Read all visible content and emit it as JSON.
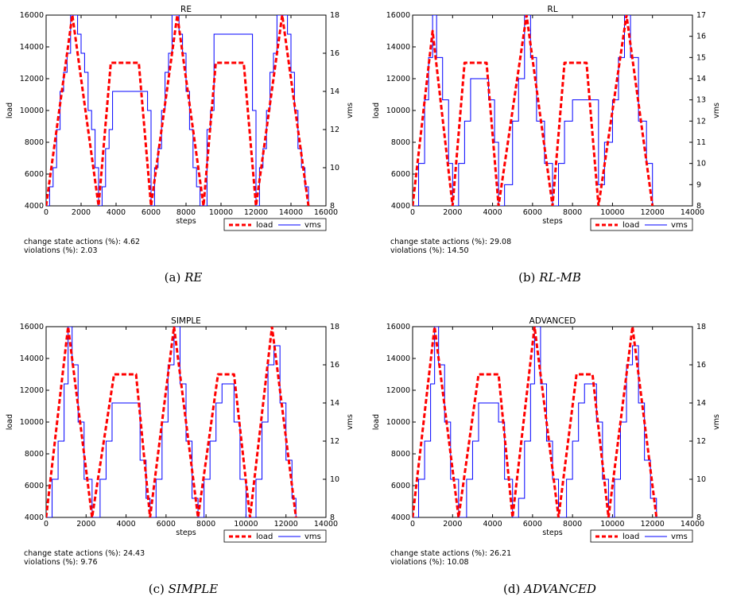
{
  "chart_data": [
    {
      "type": "line",
      "title": "RE",
      "xlabel": "steps",
      "ylabel": "load",
      "y2label": "vms",
      "xlim": [
        0,
        16000
      ],
      "ylim": [
        4000,
        16000
      ],
      "y2lim": [
        8,
        18
      ],
      "xticks": [
        "0",
        "2000",
        "4000",
        "6000",
        "8000",
        "10000",
        "12000",
        "14000",
        "16000"
      ],
      "yticks": [
        "4000",
        "6000",
        "8000",
        "10000",
        "12000",
        "14000",
        "16000"
      ],
      "y2ticks": [
        "8",
        "10",
        "12",
        "14",
        "16",
        "18"
      ],
      "legend": {
        "position": "below-right",
        "entries": [
          "load",
          "vms"
        ]
      },
      "series": [
        {
          "name": "load",
          "style": "dashed",
          "color": "#ff0000",
          "axis": "left",
          "x": [
            0,
            1500,
            3000,
            3700,
            5300,
            6000,
            7500,
            9000,
            9700,
            11300,
            12000,
            13500,
            15000
          ],
          "y": [
            4000,
            16000,
            4000,
            13000,
            13000,
            4000,
            16000,
            4000,
            13000,
            13000,
            4000,
            16000,
            4000
          ]
        },
        {
          "name": "vms",
          "style": "solid",
          "color": "#0000ff",
          "axis": "right",
          "x": [
            0,
            200,
            400,
            600,
            800,
            1000,
            1200,
            1400,
            1600,
            1800,
            2000,
            2200,
            2400,
            2600,
            2800,
            3000,
            3200,
            3400,
            3600,
            3800,
            4000,
            4500,
            5000,
            5500,
            5800,
            6000,
            6200,
            6400,
            6600,
            6800,
            7000,
            7200,
            7400,
            7600,
            7800,
            8000,
            8200,
            8400,
            8600,
            8800,
            9000,
            9200,
            9400,
            9600,
            9800,
            10000,
            10500,
            11000,
            11500,
            11800,
            12000,
            12200,
            12400,
            12600,
            12800,
            13000,
            13200,
            13400,
            13600,
            13800,
            14000,
            14200,
            14400,
            14600,
            14800,
            15000
          ],
          "y": [
            8,
            9,
            10,
            12,
            14,
            15,
            16,
            18,
            18,
            17,
            16,
            15,
            13,
            12,
            10,
            8,
            9,
            11,
            12,
            14,
            14,
            14,
            14,
            14,
            13,
            8,
            10,
            11,
            13,
            15,
            16,
            18,
            18,
            17,
            16,
            14,
            12,
            10,
            9,
            8,
            8,
            12,
            13,
            17,
            17,
            17,
            17,
            17,
            17,
            13,
            8,
            10,
            11,
            13,
            15,
            16,
            18,
            18,
            18,
            17,
            15,
            13,
            11,
            10,
            9,
            8
          ]
        }
      ],
      "annotations": [
        "change state actions (%): 4.62",
        "violations (%): 2.03"
      ]
    },
    {
      "type": "line",
      "title": "RL",
      "xlabel": "steps",
      "ylabel": "load",
      "y2label": "vms",
      "xlim": [
        0,
        14000
      ],
      "ylim": [
        4000,
        16000
      ],
      "y2lim": [
        8,
        17
      ],
      "xticks": [
        "0",
        "2000",
        "4000",
        "6000",
        "8000",
        "10000",
        "12000",
        "14000"
      ],
      "yticks": [
        "4000",
        "6000",
        "8000",
        "10000",
        "12000",
        "14000",
        "16000"
      ],
      "y2ticks": [
        "8",
        "9",
        "10",
        "11",
        "12",
        "13",
        "14",
        "15",
        "16",
        "17"
      ],
      "legend": {
        "position": "below-right",
        "entries": [
          "load",
          "vms"
        ]
      },
      "series": [
        {
          "name": "load",
          "style": "dashed",
          "color": "#ff0000",
          "axis": "left",
          "x": [
            0,
            1000,
            2000,
            2600,
            3700,
            4300,
            5700,
            7000,
            7600,
            8700,
            9300,
            10700,
            12000
          ],
          "y": [
            4000,
            15000,
            4000,
            13000,
            13000,
            4000,
            16000,
            4000,
            13000,
            13000,
            4000,
            16000,
            4000
          ]
        },
        {
          "name": "vms",
          "style": "solid",
          "color": "#0000ff",
          "axis": "right",
          "x": [
            0,
            300,
            600,
            800,
            1000,
            1200,
            1500,
            1800,
            2000,
            2300,
            2600,
            2900,
            3200,
            3500,
            3800,
            4100,
            4300,
            4600,
            5000,
            5300,
            5600,
            5900,
            6200,
            6600,
            7000,
            7300,
            7600,
            8000,
            8500,
            9000,
            9300,
            9600,
            10000,
            10300,
            10600,
            10900,
            11300,
            11700,
            12000
          ],
          "y": [
            8,
            10,
            13,
            15,
            17,
            15,
            13,
            10,
            8,
            10,
            12,
            14,
            14,
            14,
            13,
            11,
            8,
            9,
            12,
            14,
            17,
            15,
            12,
            10,
            8,
            10,
            12,
            13,
            13,
            13,
            9,
            11,
            13,
            15,
            17,
            15,
            12,
            10,
            8
          ]
        }
      ],
      "annotations": [
        "change state actions (%): 29.08",
        "violations (%): 14.50"
      ]
    },
    {
      "type": "line",
      "title": "SIMPLE",
      "xlabel": "steps",
      "ylabel": "load",
      "y2label": "vms",
      "xlim": [
        0,
        14000
      ],
      "ylim": [
        4000,
        16000
      ],
      "y2lim": [
        8,
        18
      ],
      "xticks": [
        "0",
        "2000",
        "4000",
        "6000",
        "8000",
        "10000",
        "12000",
        "14000"
      ],
      "yticks": [
        "4000",
        "6000",
        "8000",
        "10000",
        "12000",
        "14000",
        "16000"
      ],
      "y2ticks": [
        "8",
        "10",
        "12",
        "14",
        "16",
        "18"
      ],
      "legend": {
        "position": "below-right",
        "entries": [
          "load",
          "vms"
        ]
      },
      "series": [
        {
          "name": "load",
          "style": "dashed",
          "color": "#ff0000",
          "axis": "left",
          "x": [
            0,
            1100,
            2300,
            3400,
            4500,
            5200,
            6400,
            7600,
            8600,
            9400,
            10200,
            11300,
            12500
          ],
          "y": [
            4000,
            16000,
            4000,
            13000,
            13000,
            4000,
            16000,
            4000,
            13000,
            13000,
            4000,
            16000,
            4000
          ]
        },
        {
          "name": "vms",
          "style": "solid",
          "color": "#0000ff",
          "axis": "right",
          "x": [
            0,
            300,
            600,
            900,
            1100,
            1300,
            1600,
            1900,
            2300,
            2700,
            3000,
            3300,
            3600,
            4000,
            4400,
            4700,
            5000,
            5200,
            5500,
            5800,
            6100,
            6400,
            6700,
            7000,
            7300,
            7600,
            7900,
            8200,
            8500,
            8800,
            9100,
            9400,
            9700,
            10000,
            10200,
            10500,
            10800,
            11100,
            11400,
            11700,
            12000,
            12300,
            12500
          ],
          "y": [
            8,
            10,
            12,
            15,
            18,
            16,
            13,
            10,
            8,
            10,
            12,
            14,
            14,
            14,
            14,
            11,
            9,
            8,
            10,
            13,
            16,
            18,
            15,
            12,
            9,
            8,
            10,
            12,
            14,
            15,
            15,
            13,
            10,
            8,
            8,
            10,
            13,
            16,
            17,
            14,
            11,
            9,
            8
          ]
        }
      ],
      "annotations": [
        "change state actions (%): 24.43",
        "violations (%): 9.76"
      ]
    },
    {
      "type": "line",
      "title": "ADVANCED",
      "xlabel": "steps",
      "ylabel": "load",
      "y2label": "vms",
      "xlim": [
        0,
        14000
      ],
      "ylim": [
        4000,
        16000
      ],
      "y2lim": [
        8,
        18
      ],
      "xticks": [
        "0",
        "2000",
        "4000",
        "6000",
        "8000",
        "10000",
        "12000",
        "14000"
      ],
      "yticks": [
        "4000",
        "6000",
        "8000",
        "10000",
        "12000",
        "14000",
        "16000"
      ],
      "y2ticks": [
        "8",
        "10",
        "12",
        "14",
        "16",
        "18"
      ],
      "legend": {
        "position": "below-right",
        "entries": [
          "load",
          "vms"
        ]
      },
      "series": [
        {
          "name": "load",
          "style": "dashed",
          "color": "#ff0000",
          "axis": "left",
          "x": [
            0,
            1100,
            2300,
            3300,
            4300,
            5000,
            6100,
            7300,
            8200,
            9000,
            9800,
            11000,
            12200
          ],
          "y": [
            4000,
            16000,
            4000,
            13000,
            13000,
            4000,
            16000,
            4000,
            13000,
            13000,
            4000,
            16000,
            4000
          ]
        },
        {
          "name": "vms",
          "style": "solid",
          "color": "#0000ff",
          "axis": "right",
          "x": [
            0,
            300,
            600,
            900,
            1100,
            1300,
            1600,
            1900,
            2300,
            2700,
            3000,
            3300,
            3600,
            4000,
            4300,
            4600,
            5000,
            5300,
            5600,
            5900,
            6100,
            6400,
            6700,
            7000,
            7300,
            7700,
            8000,
            8300,
            8600,
            8900,
            9200,
            9500,
            9800,
            10100,
            10400,
            10700,
            11000,
            11300,
            11600,
            11900,
            12200
          ],
          "y": [
            8,
            10,
            12,
            15,
            18,
            16,
            13,
            10,
            8,
            10,
            12,
            14,
            14,
            14,
            13,
            10,
            8,
            9,
            12,
            15,
            18,
            15,
            12,
            10,
            8,
            10,
            12,
            14,
            15,
            15,
            13,
            10,
            8,
            10,
            13,
            16,
            17,
            14,
            11,
            9,
            8
          ]
        }
      ],
      "annotations": [
        "change state actions (%): 26.21",
        "violations (%): 10.08"
      ]
    }
  ],
  "captions": [
    {
      "label": "(a)",
      "name": "RE"
    },
    {
      "label": "(b)",
      "name": "RL-MB"
    },
    {
      "label": "(c)",
      "name": "SIMPLE"
    },
    {
      "label": "(d)",
      "name": "ADVANCED"
    }
  ]
}
